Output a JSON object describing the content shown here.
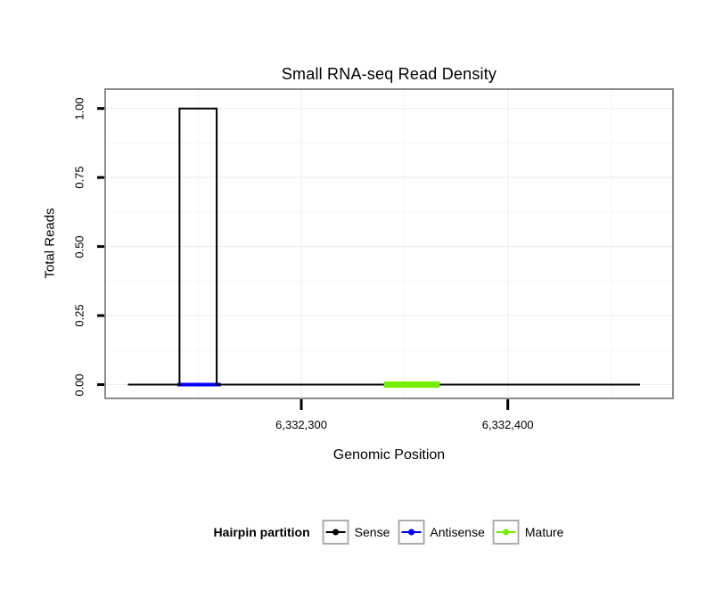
{
  "chart_data": {
    "type": "line",
    "title": "Small RNA-seq Read Density",
    "xlabel": "Genomic Position",
    "ylabel": "Total Reads",
    "xlim": [
      6332205,
      6332480
    ],
    "ylim": [
      0,
      1
    ],
    "grid": {
      "major_color": "#EDEDED",
      "minor_color": "#F6F6F6"
    },
    "x_ticks": [
      {
        "value": 6332300,
        "label": "6,332,300"
      },
      {
        "value": 6332400,
        "label": "6,332,400"
      }
    ],
    "y_ticks": [
      {
        "value": 0,
        "label": "0.00"
      },
      {
        "value": 0.25,
        "label": "0.25"
      },
      {
        "value": 0.5,
        "label": "0.50"
      },
      {
        "value": 0.75,
        "label": "0.75"
      },
      {
        "value": 1,
        "label": "1.00"
      }
    ],
    "series": [
      {
        "name": "Sense",
        "type": "step",
        "color": "#000000",
        "stroke_width": 2,
        "z": 1,
        "points": [
          [
            6332216,
            0
          ],
          [
            6332241,
            0
          ],
          [
            6332241,
            1
          ],
          [
            6332259,
            1
          ],
          [
            6332259,
            0
          ],
          [
            6332464,
            0
          ]
        ]
      },
      {
        "name": "Antisense",
        "type": "segment",
        "color": "#0000FF",
        "stroke_width": 4,
        "z": 0,
        "y": 0,
        "x0": 6332240,
        "x1": 6332261
      },
      {
        "name": "Mature",
        "type": "segment",
        "color": "#76EE00",
        "stroke_width": 7,
        "z": 2,
        "y": 0,
        "x0": 6332340,
        "x1": 6332367
      }
    ],
    "legend": {
      "title": "Hairpin partition",
      "position": "bottom",
      "entries": [
        {
          "label": "Sense",
          "color": "#000000"
        },
        {
          "label": "Antisense",
          "color": "#0000FF"
        },
        {
          "label": "Mature",
          "color": "#76EE00"
        }
      ]
    }
  }
}
